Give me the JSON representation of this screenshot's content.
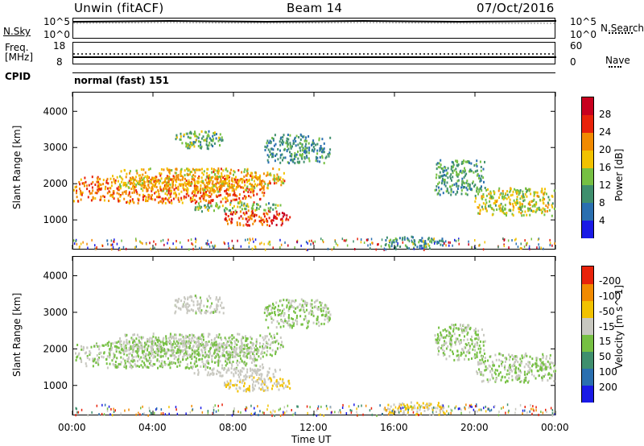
{
  "header": {
    "station": "Unwin (fitACF)",
    "beam": "Beam 14",
    "date": "07/Oct/2016"
  },
  "panels": {
    "nsky_label": "N.Sky",
    "nsearch_label": "N.Search",
    "nsky_ticks": [
      "10^5",
      "10^0"
    ],
    "nsearch_ticks": [
      "10^5",
      "10^0"
    ],
    "freq_label_1": "Freq.",
    "freq_label_2": "[MHz]",
    "freq_ticks": [
      "18",
      "8"
    ],
    "nave_label": "Nave",
    "nave_ticks": [
      "60",
      "0"
    ],
    "cpid_label": "CPID",
    "cpid_value": "normal (fast) 151"
  },
  "chart_data": [
    {
      "type": "heatmap",
      "ylabel": "Slant Range [km]",
      "xlabel": "Time UT",
      "x_ticks": [
        "00:00",
        "04:00",
        "08:00",
        "12:00",
        "16:00",
        "20:00",
        "00:00"
      ],
      "xlim_hours": [
        0,
        24
      ],
      "y_ticks": [
        "1000",
        "2000",
        "3000",
        "4000"
      ],
      "ylim": [
        180,
        4540
      ],
      "colorbar_label": "Power [dB]",
      "colorbar_ticks": [
        "4",
        "8",
        "12",
        "16",
        "20",
        "24",
        "28"
      ],
      "colorbar_range": [
        0,
        30
      ],
      "colors": [
        "#1a1ae6",
        "#2a6fb0",
        "#3f8f6e",
        "#76c043",
        "#f2c200",
        "#f28a00",
        "#e8220a",
        "#c8001e"
      ],
      "echo_regions": [
        {
          "t0": 0.0,
          "t1": 9.5,
          "r0": 1480,
          "r1": 2250,
          "level": 21
        },
        {
          "t0": 2.2,
          "t1": 10.5,
          "r0": 1800,
          "r1": 2450,
          "level": 18
        },
        {
          "t0": 7.5,
          "t1": 10.8,
          "r0": 850,
          "r1": 1280,
          "level": 24
        },
        {
          "t0": 6.0,
          "t1": 10.3,
          "r0": 1250,
          "r1": 1500,
          "level": 12
        },
        {
          "t0": 9.5,
          "t1": 12.8,
          "r0": 2600,
          "r1": 3400,
          "level": 9
        },
        {
          "t0": 5.0,
          "t1": 7.5,
          "r0": 3000,
          "r1": 3500,
          "level": 11
        },
        {
          "t0": 15.5,
          "t1": 18.5,
          "r0": 200,
          "r1": 550,
          "level": 9
        },
        {
          "t0": 20.0,
          "t1": 24.0,
          "r0": 1100,
          "r1": 1900,
          "level": 15
        },
        {
          "t0": 18.0,
          "t1": 20.5,
          "r0": 1700,
          "r1": 2700,
          "level": 10
        }
      ]
    },
    {
      "type": "heatmap",
      "ylabel": "Slant Range [km]",
      "xlabel": "Time UT",
      "x_ticks": [
        "00:00",
        "04:00",
        "08:00",
        "12:00",
        "16:00",
        "20:00",
        "00:00"
      ],
      "xlim_hours": [
        0,
        24
      ],
      "y_ticks": [
        "1000",
        "2000",
        "3000",
        "4000"
      ],
      "ylim": [
        180,
        4540
      ],
      "colorbar_label": "Velocity [m s^-1]",
      "colorbar_ticks": [
        "200",
        "100",
        "50",
        "15",
        "-15",
        "-50",
        "-100",
        "-200"
      ],
      "colorbar_range": [
        -250,
        250
      ],
      "colors": [
        "#1a1ae6",
        "#2a6fb0",
        "#3f8f6e",
        "#76c043",
        "#c8c8c0",
        "#f2c200",
        "#f28a00",
        "#e8220a"
      ],
      "echo_regions": [
        {
          "t0": 0.0,
          "t1": 9.5,
          "r0": 1480,
          "r1": 2250,
          "level": 0
        },
        {
          "t0": 2.2,
          "t1": 10.5,
          "r0": 1800,
          "r1": 2450,
          "level": -5
        },
        {
          "t0": 7.5,
          "t1": 10.8,
          "r0": 850,
          "r1": 1280,
          "level": -60
        },
        {
          "t0": 6.0,
          "t1": 10.3,
          "r0": 1250,
          "r1": 1500,
          "level": -30
        },
        {
          "t0": 9.5,
          "t1": 12.8,
          "r0": 2600,
          "r1": 3400,
          "level": 0
        },
        {
          "t0": 5.0,
          "t1": 7.5,
          "r0": 3000,
          "r1": 3500,
          "level": -20
        },
        {
          "t0": 15.5,
          "t1": 18.5,
          "r0": 200,
          "r1": 550,
          "level": -60
        },
        {
          "t0": 20.0,
          "t1": 24.0,
          "r0": 1100,
          "r1": 1900,
          "level": 0
        },
        {
          "t0": 18.0,
          "t1": 20.5,
          "r0": 1700,
          "r1": 2700,
          "level": 5
        }
      ]
    }
  ]
}
